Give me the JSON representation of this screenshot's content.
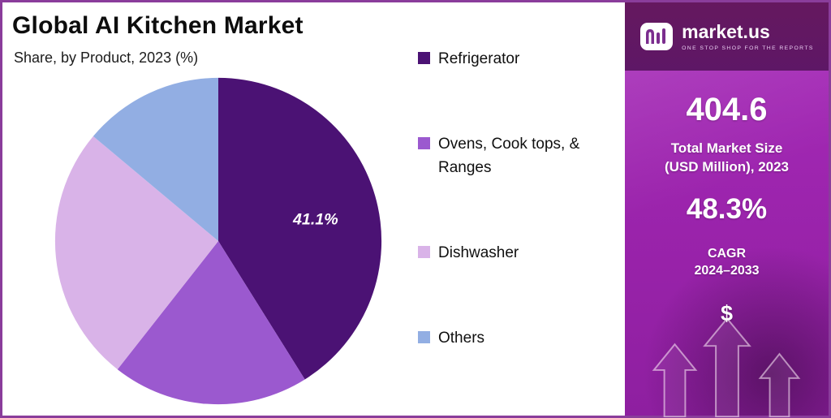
{
  "header": {
    "title": "Global AI Kitchen Market",
    "subtitle": "Share, by Product, 2023 (%)"
  },
  "chart_data": {
    "type": "pie",
    "title": "Global AI Kitchen Market",
    "subtitle": "Share, by Product, 2023 (%)",
    "categories": [
      "Refrigerator",
      "Ovens, Cook tops, & Ranges",
      "Dishwasher",
      "Others"
    ],
    "values": [
      41.1,
      19.5,
      25.5,
      13.9
    ],
    "colors": [
      "#4b1274",
      "#9b59cf",
      "#d9b3e8",
      "#92aee3"
    ],
    "data_labels": [
      "41.1%",
      "",
      "",
      ""
    ],
    "legend_position": "right",
    "start_angle": "top",
    "direction": "clockwise"
  },
  "legend": {
    "items": [
      {
        "label": "Refrigerator",
        "color": "#4b1274"
      },
      {
        "label": "Ovens, Cook tops, & Ranges",
        "color": "#9b59cf"
      },
      {
        "label": "Dishwasher",
        "color": "#d9b3e8"
      },
      {
        "label": "Others",
        "color": "#92aee3"
      }
    ]
  },
  "sidebar": {
    "brand": {
      "name": "market.us",
      "tagline": "ONE STOP SHOP FOR THE REPORTS"
    },
    "stats": [
      {
        "value": "404.6",
        "label": "Total Market Size\n(USD Million), 2023"
      },
      {
        "value": "48.3%",
        "label": "CAGR\n2024–2033"
      }
    ],
    "dollar_symbol": "$",
    "colors": {
      "panel": "#9a23ab",
      "panel_header": "#5e1766",
      "accent": "#ffffff"
    }
  }
}
